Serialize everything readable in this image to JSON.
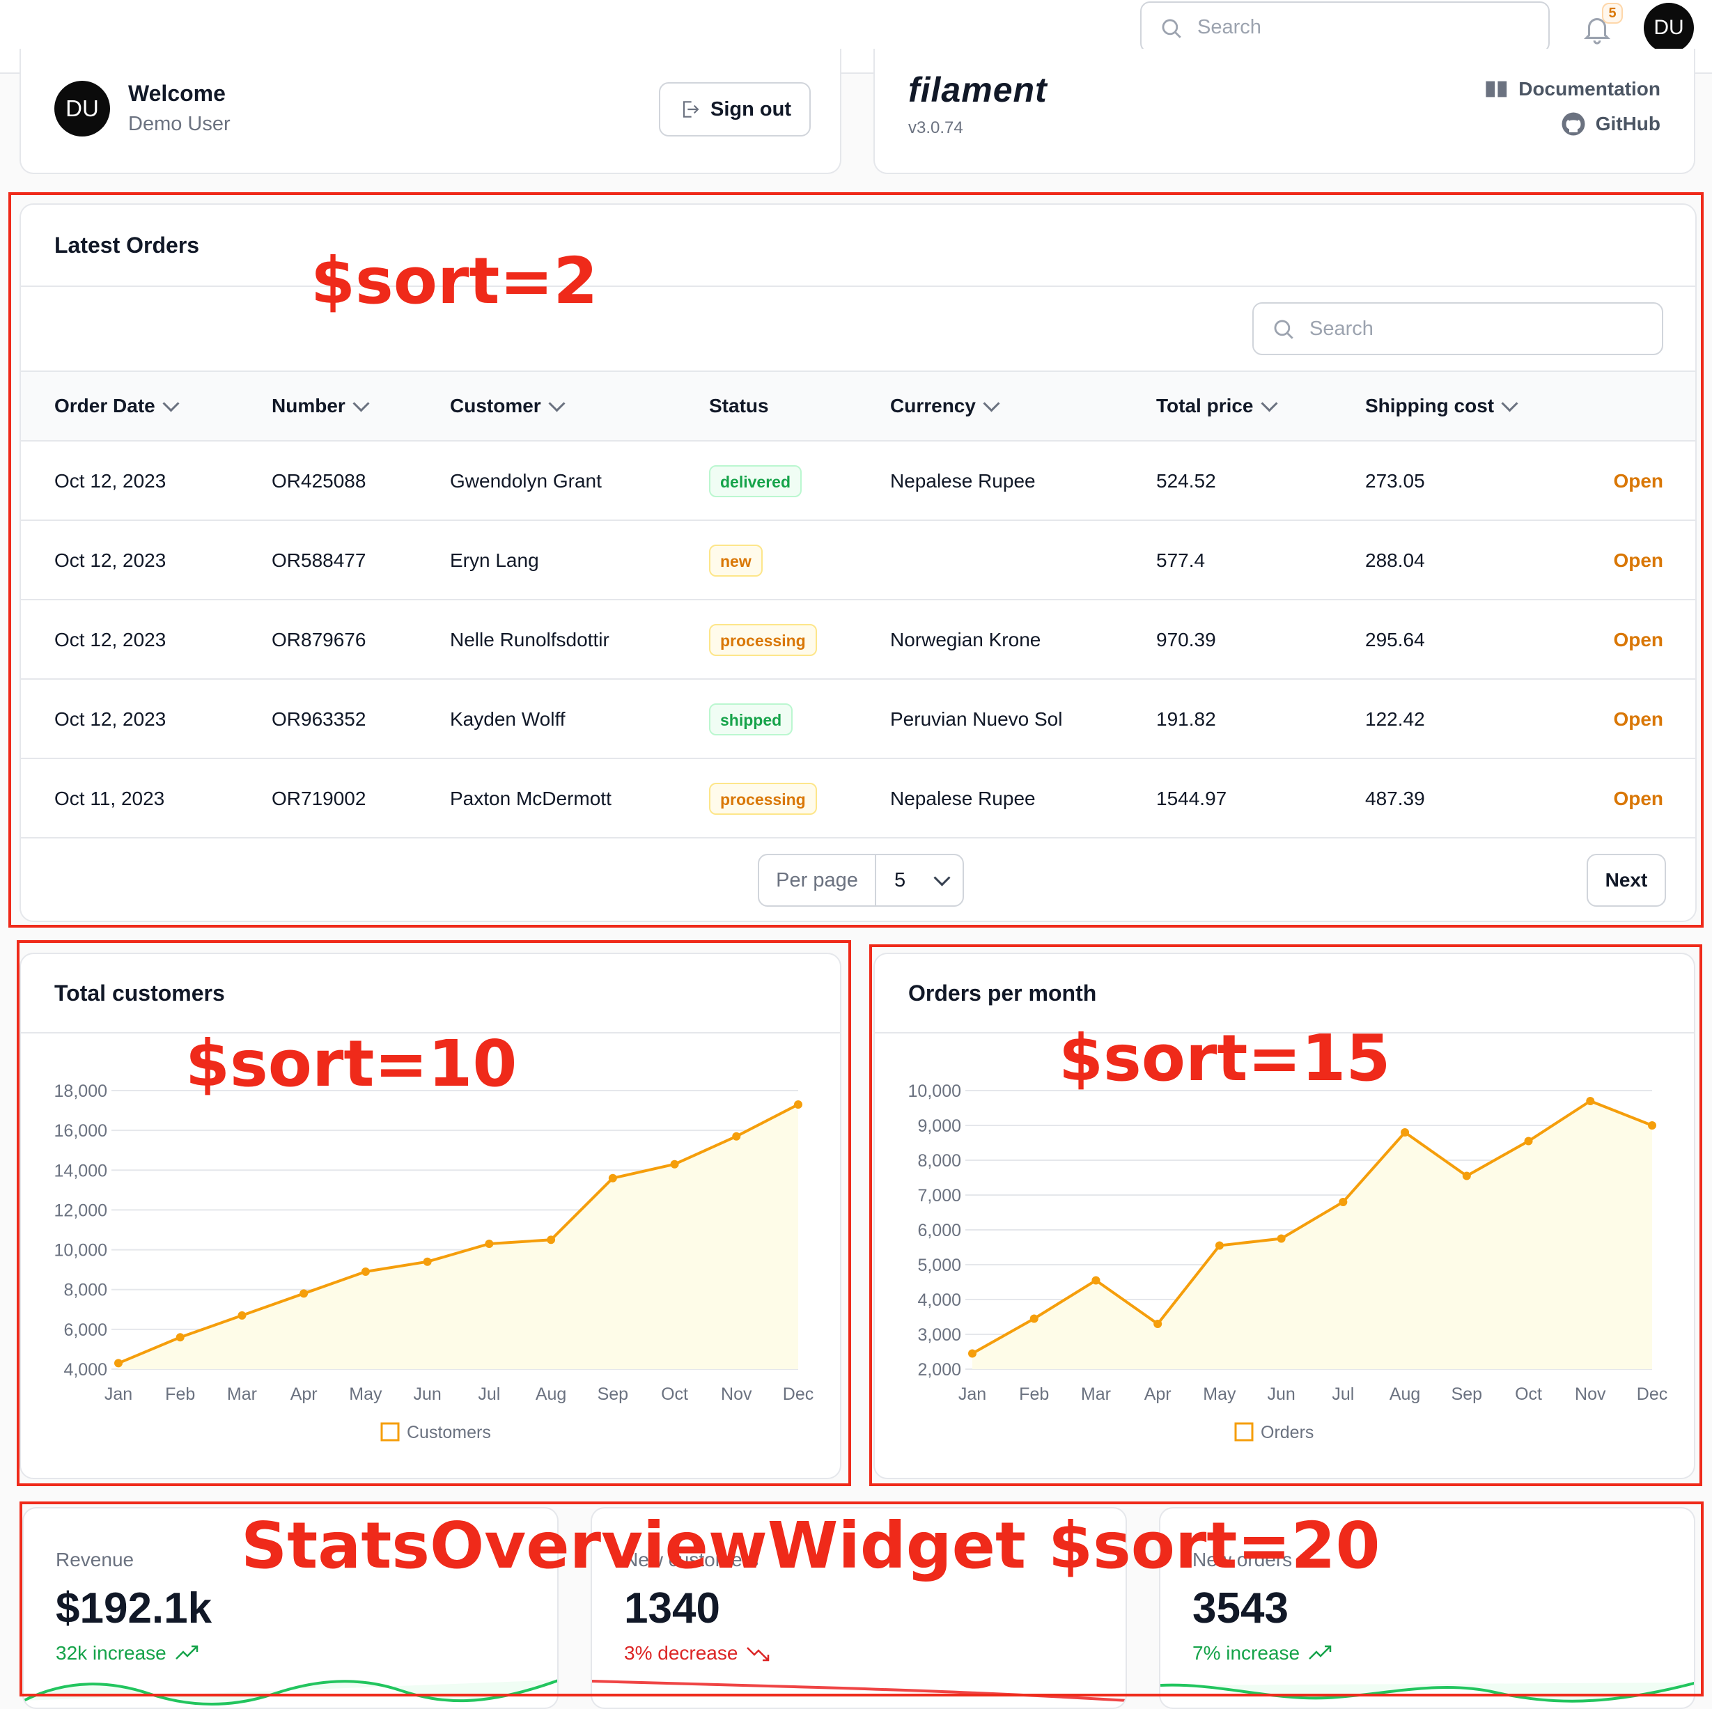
{
  "topbar": {
    "search_placeholder": "Search",
    "notifications_count": "5",
    "avatar_initials": "DU"
  },
  "account": {
    "avatar_initials": "DU",
    "welcome": "Welcome",
    "user_name": "Demo User",
    "sign_out_label": "Sign out"
  },
  "filament": {
    "logo": "filament",
    "version": "v3.0.74",
    "documentation_label": "Documentation",
    "github_label": "GitHub"
  },
  "orders_table": {
    "title": "Latest Orders",
    "search_placeholder": "Search",
    "columns": [
      "Order Date",
      "Number",
      "Customer",
      "Status",
      "Currency",
      "Total price",
      "Shipping cost"
    ],
    "rows": [
      {
        "date": "Oct 12, 2023",
        "number": "OR425088",
        "customer": "Gwendolyn Grant",
        "status": "delivered",
        "currency": "Nepalese Rupee",
        "total": "524.52",
        "shipping": "273.05",
        "action": "Open"
      },
      {
        "date": "Oct 12, 2023",
        "number": "OR588477",
        "customer": "Eryn Lang",
        "status": "new",
        "currency": "",
        "total": "577.4",
        "shipping": "288.04",
        "action": "Open"
      },
      {
        "date": "Oct 12, 2023",
        "number": "OR879676",
        "customer": "Nelle Runolfsdottir",
        "status": "processing",
        "currency": "Norwegian Krone",
        "total": "970.39",
        "shipping": "295.64",
        "action": "Open"
      },
      {
        "date": "Oct 12, 2023",
        "number": "OR963352",
        "customer": "Kayden Wolff",
        "status": "shipped",
        "currency": "Peruvian Nuevo Sol",
        "total": "191.82",
        "shipping": "122.42",
        "action": "Open"
      },
      {
        "date": "Oct 11, 2023",
        "number": "OR719002",
        "customer": "Paxton McDermott",
        "status": "processing",
        "currency": "Nepalese Rupee",
        "total": "1544.97",
        "shipping": "487.39",
        "action": "Open"
      }
    ],
    "per_page_label": "Per page",
    "per_page_value": "5",
    "next_label": "Next"
  },
  "chart_data": [
    {
      "type": "area",
      "title": "Total customers",
      "categories": [
        "Jan",
        "Feb",
        "Mar",
        "Apr",
        "May",
        "Jun",
        "Jul",
        "Aug",
        "Sep",
        "Oct",
        "Nov",
        "Dec"
      ],
      "series": [
        {
          "name": "Customers",
          "values": [
            4300,
            5600,
            6700,
            7800,
            8900,
            9400,
            10300,
            10500,
            13600,
            14300,
            15700,
            17300
          ]
        }
      ],
      "y_ticks": [
        "4,000",
        "6,000",
        "8,000",
        "10,000",
        "12,000",
        "14,000",
        "16,000",
        "18,000"
      ],
      "ylim": [
        4000,
        18000
      ],
      "grid": true,
      "legend": "bottom",
      "color": "#f59e0b"
    },
    {
      "type": "area",
      "title": "Orders per month",
      "categories": [
        "Jan",
        "Feb",
        "Mar",
        "Apr",
        "May",
        "Jun",
        "Jul",
        "Aug",
        "Sep",
        "Oct",
        "Nov",
        "Dec"
      ],
      "series": [
        {
          "name": "Orders",
          "values": [
            2450,
            3450,
            4550,
            3300,
            5550,
            5750,
            6800,
            8800,
            7550,
            8550,
            9700,
            9000
          ]
        }
      ],
      "y_ticks": [
        "2,000",
        "3,000",
        "4,000",
        "5,000",
        "6,000",
        "7,000",
        "8,000",
        "9,000",
        "10,000"
      ],
      "ylim": [
        2000,
        10000
      ],
      "grid": true,
      "legend": "bottom",
      "color": "#f59e0b"
    }
  ],
  "stats": [
    {
      "label": "Revenue",
      "value": "$192.1k",
      "change": "32k increase",
      "trend": "up",
      "color": "#16a34a"
    },
    {
      "label": "New customers",
      "value": "1340",
      "change": "3% decrease",
      "trend": "down",
      "color": "#dc2626"
    },
    {
      "label": "New orders",
      "value": "3543",
      "change": "7% increase",
      "trend": "up",
      "color": "#16a34a"
    }
  ],
  "annotations": {
    "orders": "$sort=2",
    "customers": "$sort=10",
    "orders_chart": "$sort=15",
    "stats": "StatsOverviewWidget $sort=20",
    "color": "#ef2a1a"
  }
}
